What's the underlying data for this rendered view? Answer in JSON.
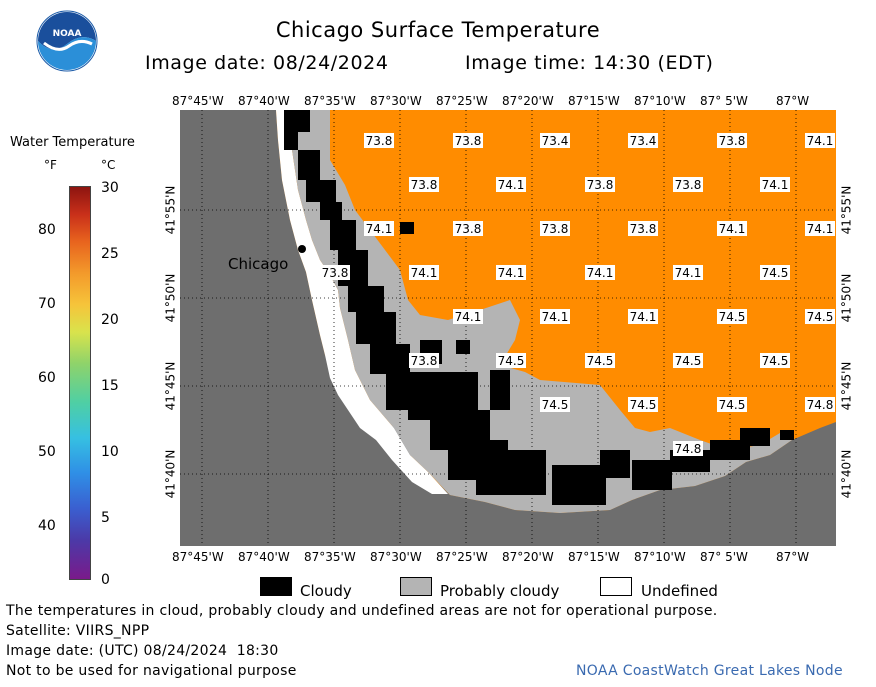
{
  "header": {
    "title": "Chicago Surface Temperature",
    "image_date": "Image date: 08/24/2024",
    "image_time": "Image time: 14:30 (EDT)"
  },
  "logo": {
    "text": "NOAA"
  },
  "colorbar": {
    "title": "Water Temperature",
    "unit_f": "°F",
    "unit_c": "°C",
    "f_ticks": [
      "80",
      "70",
      "60",
      "50",
      "40"
    ],
    "c_ticks": [
      "30",
      "25",
      "20",
      "15",
      "10",
      "5",
      "0"
    ]
  },
  "map": {
    "lon_labels_top": [
      "87°45'W",
      "87°40'W",
      "87°35'W",
      "87°30'W",
      "87°25'W",
      "87°20'W",
      "87°15'W",
      "87°10'W",
      "87° 5'W",
      "87°W"
    ],
    "lon_labels_bottom": [
      "87°45'W",
      "87°40'W",
      "87°35'W",
      "87°30'W",
      "87°25'W",
      "87°20'W",
      "87°15'W",
      "87°10'W",
      "87° 5'W",
      "87°W"
    ],
    "lat_labels": [
      "41°55'N",
      "41°50'N",
      "41°45'N",
      "41°40'N"
    ],
    "city": "Chicago",
    "colors": {
      "water": "#ff8c00",
      "land": "#6e6e6e",
      "cloudy": "#000000",
      "probably_cloudy": "#b4b4b4",
      "undefined": "#ffffff"
    },
    "temperatures": [
      [
        "73.8",
        "73.8",
        "73.4",
        "73.4",
        "73.8",
        "74.1"
      ],
      [
        "73.8",
        "74.1",
        "73.8",
        "73.8",
        "74.1"
      ],
      [
        "74.1",
        "73.8",
        "73.8",
        "73.8",
        "74.1",
        "74.1"
      ],
      [
        "73.8",
        "74.1",
        "74.1",
        "74.1",
        "74.1",
        "74.5"
      ],
      [
        "74.1",
        "74.1",
        "74.1",
        "74.5",
        "74.5"
      ],
      [
        "73.8",
        "74.5",
        "74.5",
        "74.5",
        "74.5"
      ],
      [
        "74.5",
        "74.5",
        "74.5",
        "74.8"
      ],
      [
        "74.8"
      ]
    ]
  },
  "legend": {
    "cloudy": "Cloudy",
    "probably_cloudy": "Probably cloudy",
    "undefined": "Undefined"
  },
  "footer": {
    "line1": "The temperatures in cloud, probably cloudy and undefined areas are not for operational purpose.",
    "line2": "Satellite: VIIRS_NPP",
    "line3": "Image date: (UTC) 08/24/2024  18:30",
    "line4": "Not to be used for navigational purpose",
    "credit": "NOAA CoastWatch Great Lakes Node"
  }
}
